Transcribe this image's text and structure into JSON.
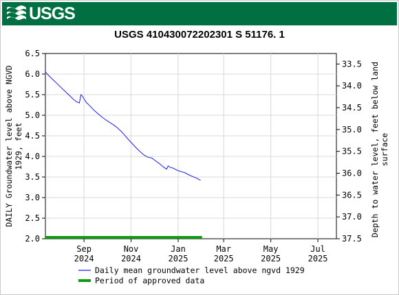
{
  "banner": {
    "logo_text": "USGS",
    "color": "#006f41"
  },
  "chart_data": {
    "type": "line",
    "title": "USGS 410430072202301 S 51176. 1",
    "ylabel_left": [
      "DAILY Groundwater level above NGVD",
      "1929, feet"
    ],
    "ylabel_right": [
      "Depth to water level, feet below land",
      "surface"
    ],
    "ylim_left": [
      2.0,
      6.5
    ],
    "ylim_right": [
      37.5,
      33.26
    ],
    "yticks_left": [
      "2.0",
      "2.5",
      "3.0",
      "3.5",
      "4.0",
      "4.5",
      "5.0",
      "5.5",
      "6.0",
      "6.5"
    ],
    "yticks_right": [
      "33.5",
      "34.0",
      "34.5",
      "35.0",
      "35.5",
      "36.0",
      "36.5",
      "37.0",
      "37.5"
    ],
    "xlim": [
      "2024-07-13",
      "2025-07-25"
    ],
    "xticks": [
      {
        "month": "Sep",
        "year": "2024",
        "date": "2024-09-01"
      },
      {
        "month": "Nov",
        "year": "2024",
        "date": "2024-11-01"
      },
      {
        "month": "Jan",
        "year": "2025",
        "date": "2025-01-01"
      },
      {
        "month": "Mar",
        "year": "2025",
        "date": "2025-03-01"
      },
      {
        "month": "May",
        "year": "2025",
        "date": "2025-05-01"
      },
      {
        "month": "Jul",
        "year": "2025",
        "date": "2025-07-01"
      }
    ],
    "series": [
      {
        "name": "Daily mean groundwater level above ngvd 1929",
        "color": "#1a1aff",
        "points": [
          [
            "2024-07-13",
            6.05
          ],
          [
            "2024-07-18",
            5.95
          ],
          [
            "2024-07-23",
            5.86
          ],
          [
            "2024-07-28",
            5.77
          ],
          [
            "2024-08-02",
            5.68
          ],
          [
            "2024-08-07",
            5.59
          ],
          [
            "2024-08-12",
            5.5
          ],
          [
            "2024-08-17",
            5.41
          ],
          [
            "2024-08-22",
            5.33
          ],
          [
            "2024-08-26",
            5.3
          ],
          [
            "2024-08-28",
            5.5
          ],
          [
            "2024-08-30",
            5.46
          ],
          [
            "2024-09-04",
            5.31
          ],
          [
            "2024-09-09",
            5.22
          ],
          [
            "2024-09-14",
            5.12
          ],
          [
            "2024-09-19",
            5.04
          ],
          [
            "2024-09-24",
            4.96
          ],
          [
            "2024-09-29",
            4.89
          ],
          [
            "2024-10-04",
            4.83
          ],
          [
            "2024-10-09",
            4.77
          ],
          [
            "2024-10-14",
            4.7
          ],
          [
            "2024-10-19",
            4.61
          ],
          [
            "2024-10-24",
            4.51
          ],
          [
            "2024-10-29",
            4.4
          ],
          [
            "2024-11-03",
            4.3
          ],
          [
            "2024-11-08",
            4.2
          ],
          [
            "2024-11-13",
            4.11
          ],
          [
            "2024-11-18",
            4.03
          ],
          [
            "2024-11-23",
            3.98
          ],
          [
            "2024-11-28",
            3.96
          ],
          [
            "2024-12-03",
            3.89
          ],
          [
            "2024-12-08",
            3.82
          ],
          [
            "2024-12-13",
            3.74
          ],
          [
            "2024-12-17",
            3.69
          ],
          [
            "2024-12-19",
            3.77
          ],
          [
            "2024-12-21",
            3.74
          ],
          [
            "2024-12-26",
            3.71
          ],
          [
            "2024-12-31",
            3.66
          ],
          [
            "2025-01-05",
            3.63
          ],
          [
            "2025-01-10",
            3.6
          ],
          [
            "2025-01-15",
            3.55
          ],
          [
            "2025-01-20",
            3.51
          ],
          [
            "2025-01-25",
            3.47
          ],
          [
            "2025-01-30",
            3.42
          ]
        ]
      }
    ],
    "approved_period": {
      "name": "Period of approved data",
      "color": "#119911",
      "start": "2024-07-13",
      "end": "2025-02-01"
    },
    "grid": true
  }
}
